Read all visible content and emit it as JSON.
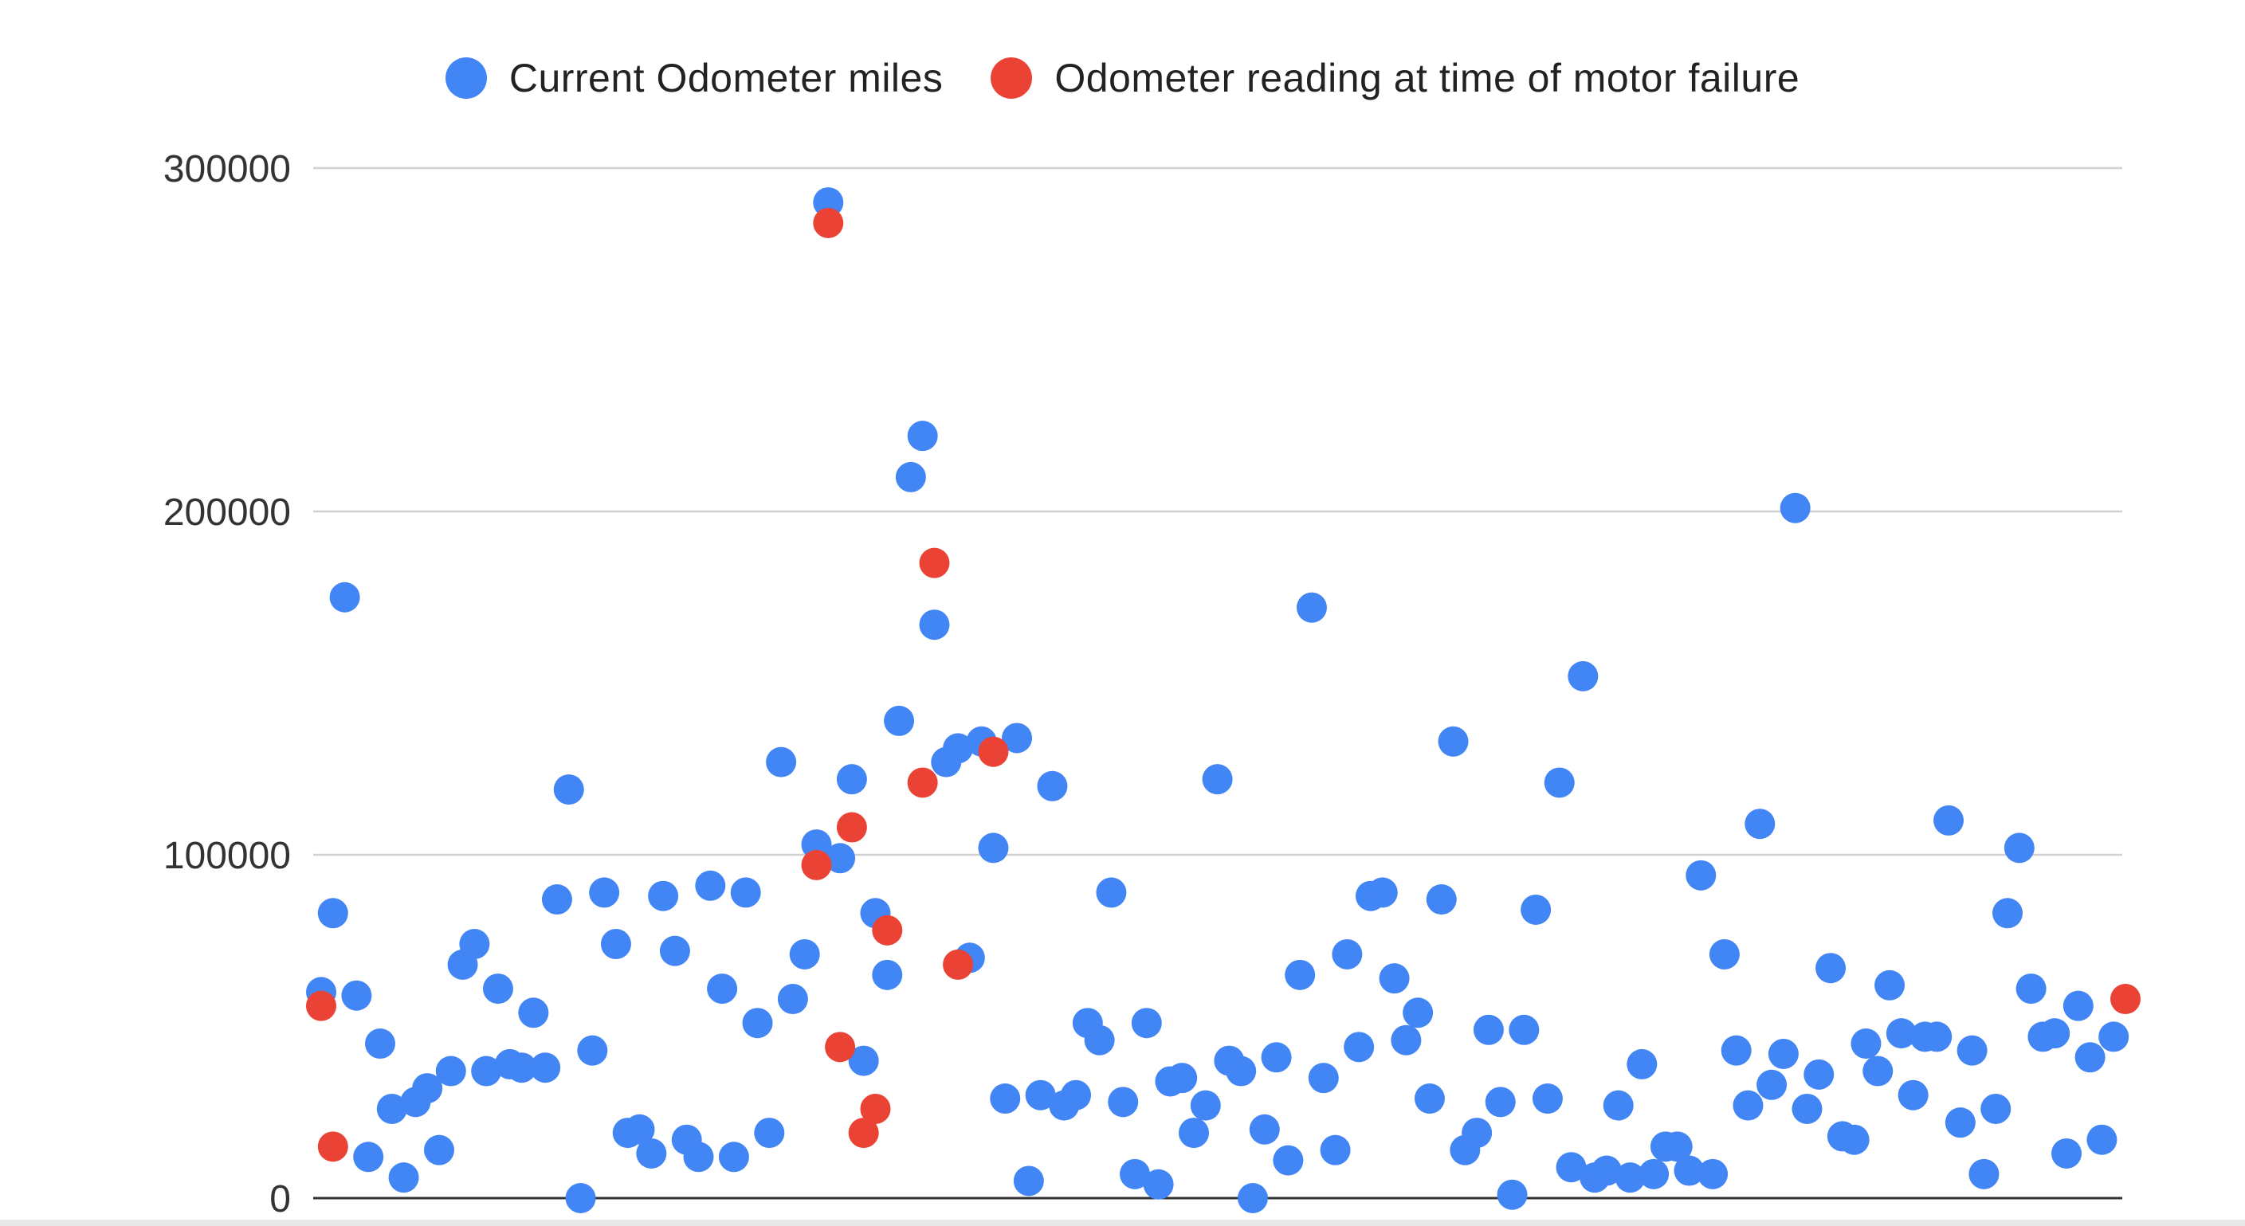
{
  "chart_data": {
    "type": "scatter",
    "title": "",
    "xlabel": "",
    "ylabel": "",
    "ylim": [
      0,
      300000
    ],
    "yticks": [
      "0",
      "100000",
      "200000",
      "300000"
    ],
    "grid": true,
    "legend_position": "top-center",
    "series": [
      {
        "name": "Current Odometer miles",
        "color": "#4285f4",
        "points": [
          [
            0,
            60000
          ],
          [
            1,
            83000
          ],
          [
            2,
            175000
          ],
          [
            3,
            59000
          ],
          [
            4,
            12000
          ],
          [
            5,
            45000
          ],
          [
            6,
            26000
          ],
          [
            7,
            6000
          ],
          [
            8,
            28000
          ],
          [
            9,
            32000
          ],
          [
            10,
            14000
          ],
          [
            11,
            37000
          ],
          [
            12,
            68000
          ],
          [
            13,
            74000
          ],
          [
            14,
            37000
          ],
          [
            15,
            61000
          ],
          [
            16,
            39000
          ],
          [
            17,
            38000
          ],
          [
            18,
            54000
          ],
          [
            19,
            38000
          ],
          [
            20,
            87000
          ],
          [
            21,
            119000
          ],
          [
            22,
            0
          ],
          [
            23,
            43000
          ],
          [
            24,
            89000
          ],
          [
            25,
            74000
          ],
          [
            26,
            19000
          ],
          [
            27,
            20000
          ],
          [
            28,
            13000
          ],
          [
            29,
            88000
          ],
          [
            30,
            72000
          ],
          [
            31,
            17000
          ],
          [
            32,
            12000
          ],
          [
            33,
            91000
          ],
          [
            34,
            61000
          ],
          [
            35,
            12000
          ],
          [
            36,
            89000
          ],
          [
            37,
            51000
          ],
          [
            38,
            19000
          ],
          [
            39,
            127000
          ],
          [
            40,
            58000
          ],
          [
            41,
            71000
          ],
          [
            42,
            103000
          ],
          [
            43,
            290000
          ],
          [
            44,
            99000
          ],
          [
            45,
            122000
          ],
          [
            46,
            40000
          ],
          [
            47,
            83000
          ],
          [
            48,
            65000
          ],
          [
            49,
            139000
          ],
          [
            50,
            210000
          ],
          [
            51,
            222000
          ],
          [
            52,
            167000
          ],
          [
            53,
            127000
          ],
          [
            54,
            131000
          ],
          [
            55,
            70000
          ],
          [
            56,
            133000
          ],
          [
            57,
            102000
          ],
          [
            58,
            29000
          ],
          [
            59,
            134000
          ],
          [
            60,
            5000
          ],
          [
            61,
            30000
          ],
          [
            62,
            120000
          ],
          [
            63,
            27000
          ],
          [
            64,
            30000
          ],
          [
            65,
            51000
          ],
          [
            66,
            46000
          ],
          [
            67,
            89000
          ],
          [
            68,
            28000
          ],
          [
            69,
            7000
          ],
          [
            70,
            51000
          ],
          [
            71,
            4000
          ],
          [
            72,
            34000
          ],
          [
            73,
            35000
          ],
          [
            74,
            19000
          ],
          [
            75,
            27000
          ],
          [
            76,
            122000
          ],
          [
            77,
            40000
          ],
          [
            78,
            37000
          ],
          [
            79,
            0
          ],
          [
            80,
            20000
          ],
          [
            81,
            41000
          ],
          [
            82,
            11000
          ],
          [
            83,
            65000
          ],
          [
            84,
            172000
          ],
          [
            85,
            35000
          ],
          [
            86,
            14000
          ],
          [
            87,
            71000
          ],
          [
            88,
            44000
          ],
          [
            89,
            88000
          ],
          [
            90,
            89000
          ],
          [
            91,
            64000
          ],
          [
            92,
            46000
          ],
          [
            93,
            54000
          ],
          [
            94,
            29000
          ],
          [
            95,
            87000
          ],
          [
            96,
            133000
          ],
          [
            97,
            14000
          ],
          [
            98,
            19000
          ],
          [
            99,
            49000
          ],
          [
            100,
            28000
          ],
          [
            101,
            1000
          ],
          [
            102,
            49000
          ],
          [
            103,
            84000
          ],
          [
            104,
            29000
          ],
          [
            105,
            121000
          ],
          [
            106,
            9000
          ],
          [
            107,
            152000
          ],
          [
            108,
            6000
          ],
          [
            109,
            8000
          ],
          [
            110,
            27000
          ],
          [
            111,
            6000
          ],
          [
            112,
            39000
          ],
          [
            113,
            7000
          ],
          [
            114,
            15000
          ],
          [
            115,
            15000
          ],
          [
            116,
            8000
          ],
          [
            117,
            94000
          ],
          [
            118,
            7000
          ],
          [
            119,
            71000
          ],
          [
            120,
            43000
          ],
          [
            121,
            27000
          ],
          [
            122,
            109000
          ],
          [
            123,
            33000
          ],
          [
            124,
            42000
          ],
          [
            125,
            201000
          ],
          [
            126,
            26000
          ],
          [
            127,
            36000
          ],
          [
            128,
            67000
          ],
          [
            129,
            18000
          ],
          [
            130,
            17000
          ],
          [
            131,
            45000
          ],
          [
            132,
            37000
          ],
          [
            133,
            62000
          ],
          [
            134,
            48000
          ],
          [
            135,
            30000
          ],
          [
            136,
            47000
          ],
          [
            137,
            47000
          ],
          [
            138,
            110000
          ],
          [
            139,
            22000
          ],
          [
            140,
            43000
          ],
          [
            141,
            7000
          ],
          [
            142,
            26000
          ],
          [
            143,
            83000
          ],
          [
            144,
            102000
          ],
          [
            145,
            61000
          ],
          [
            146,
            47000
          ],
          [
            147,
            48000
          ],
          [
            148,
            13000
          ],
          [
            149,
            56000
          ],
          [
            150,
            41000
          ],
          [
            151,
            17000
          ],
          [
            152,
            47000
          ]
        ]
      },
      {
        "name": "Odometer reading at time of motor failure",
        "color": "#ea4335",
        "points": [
          [
            0,
            56000
          ],
          [
            1,
            15000
          ],
          [
            42,
            97000
          ],
          [
            43,
            284000
          ],
          [
            44,
            44000
          ],
          [
            45,
            108000
          ],
          [
            46,
            19000
          ],
          [
            47,
            26000
          ],
          [
            48,
            78000
          ],
          [
            51,
            121000
          ],
          [
            52,
            185000
          ],
          [
            54,
            68000
          ],
          [
            57,
            130000
          ],
          [
            153,
            58000
          ]
        ]
      }
    ]
  }
}
